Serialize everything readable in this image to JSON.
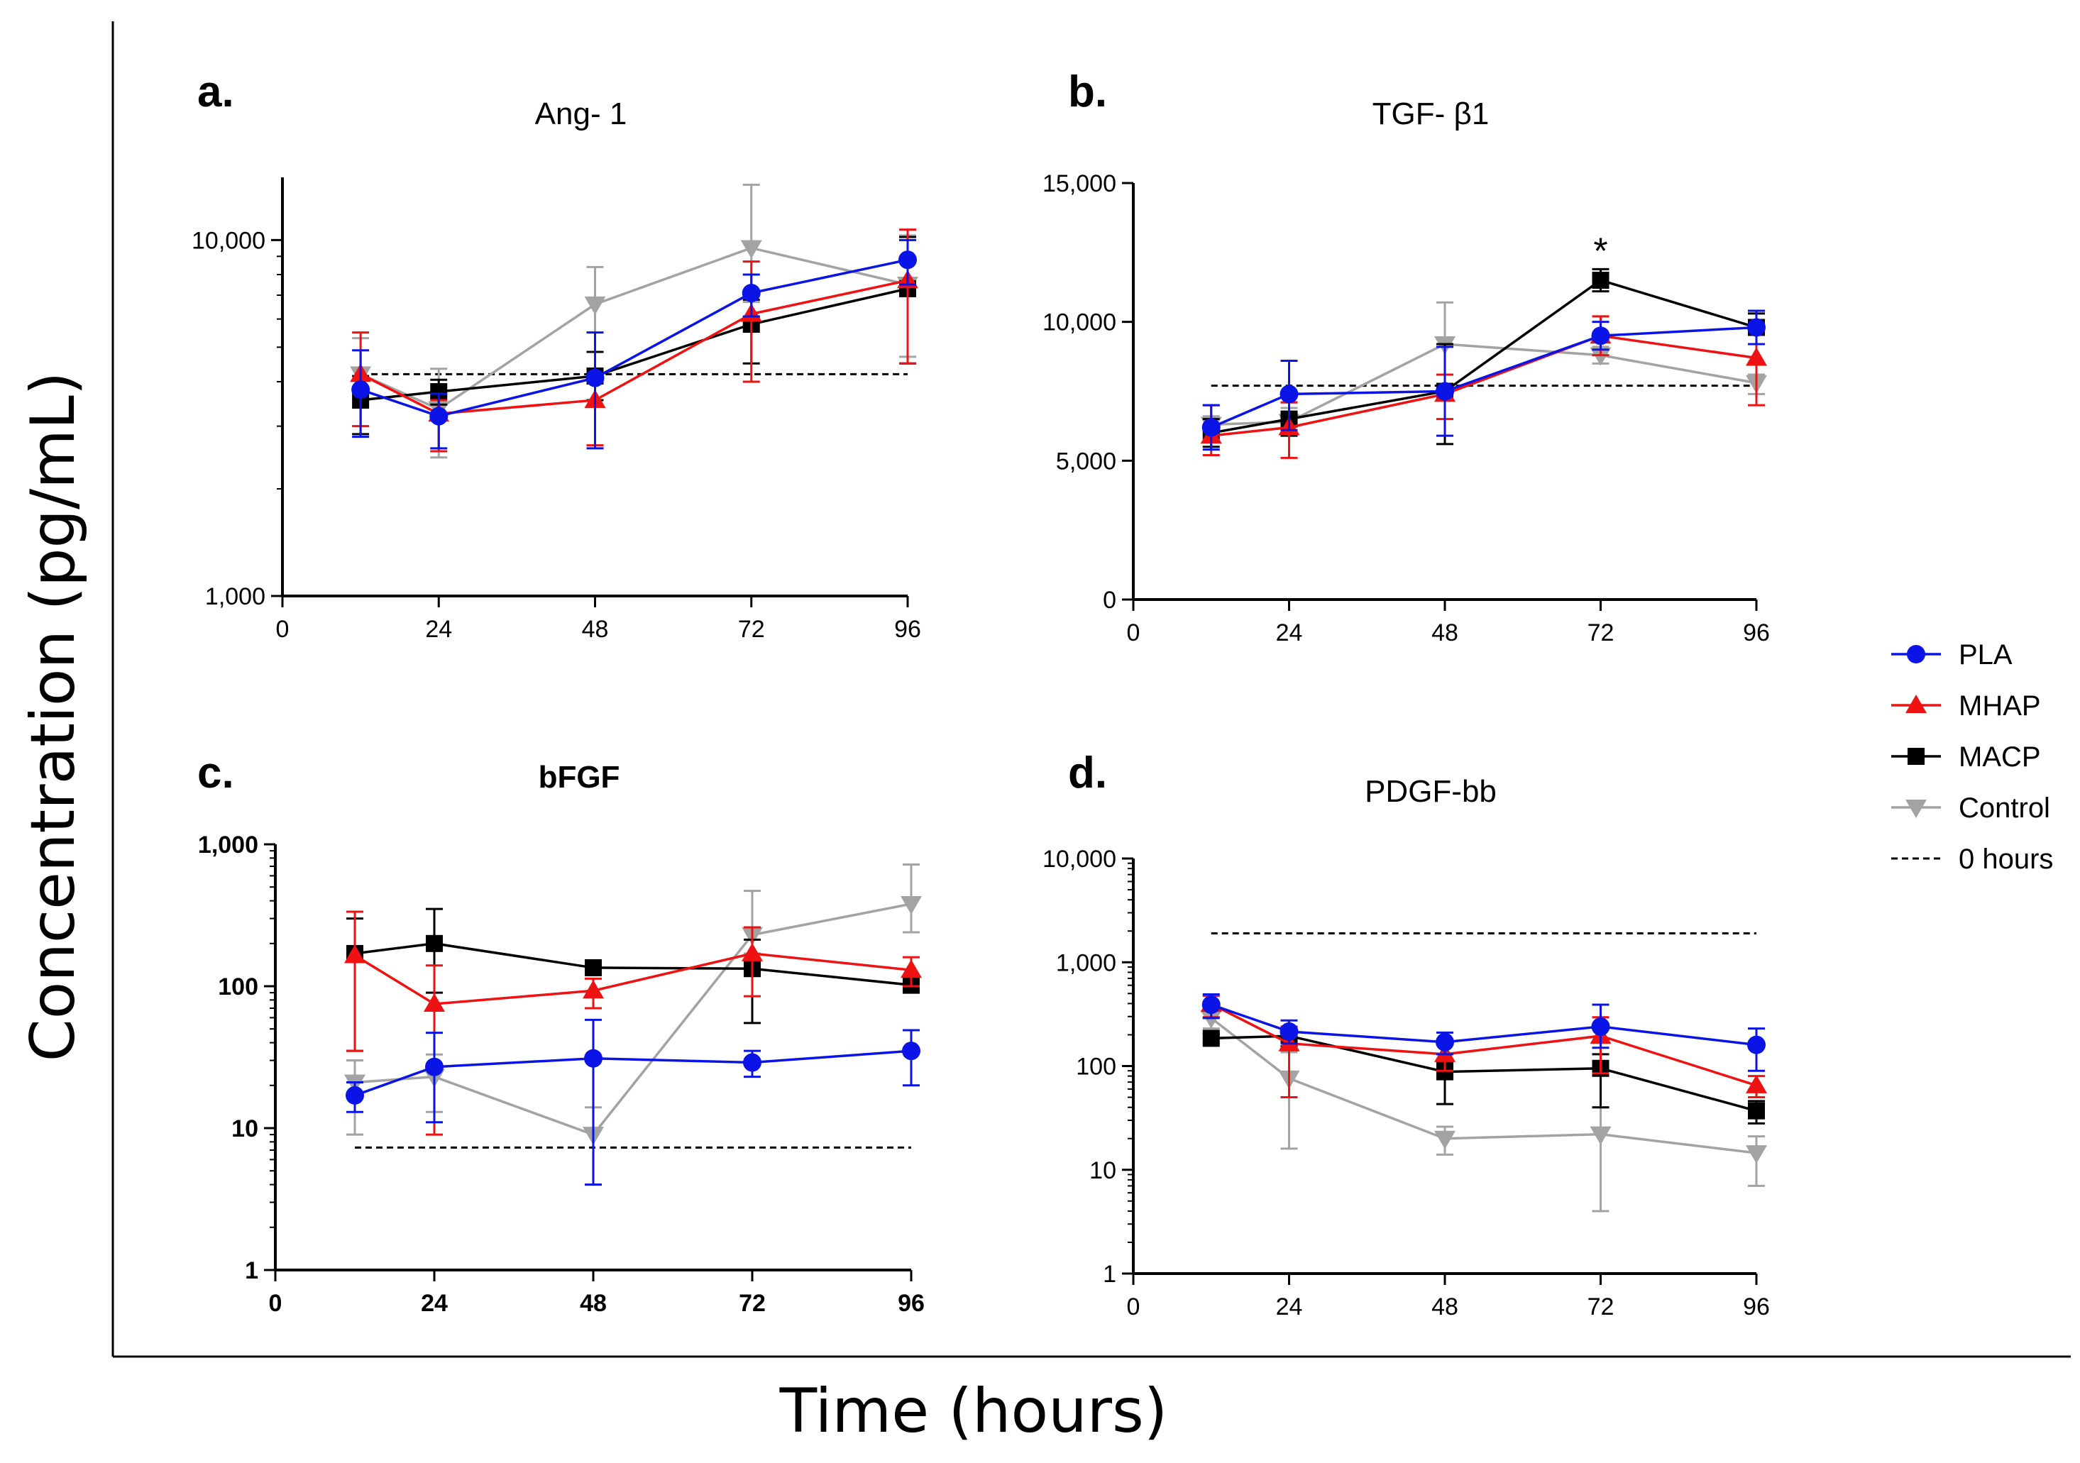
{
  "y_axis_label": "Concentration    (pg/mL)",
  "x_axis_label": "Time (hours)",
  "legend": [
    {
      "label": "PLA",
      "color": "#0a14e6",
      "marker": "circle"
    },
    {
      "label": "MHAP",
      "color": "#ee1212",
      "marker": "triangle-up"
    },
    {
      "label": "MACP",
      "color": "#000000",
      "marker": "square"
    },
    {
      "label": "Control",
      "color": "#a3a3a3",
      "marker": "triangle-down"
    },
    {
      "label": "0 hours",
      "color": "#000000",
      "marker": "dashed-line"
    }
  ],
  "significance_marker": "*",
  "chart_data": [
    {
      "id": "a",
      "letter": "a.",
      "title": "Ang- 1",
      "type": "line",
      "yscale": "log",
      "ylim": [
        1000,
        15000
      ],
      "xlim": [
        0,
        96
      ],
      "xticks": [
        0,
        24,
        48,
        72,
        96
      ],
      "xtick_labels": [
        "0",
        "24",
        "48",
        "72",
        "96"
      ],
      "yticks": [
        1000,
        10000
      ],
      "ytick_labels": [
        "1,000",
        "10,000"
      ],
      "tick_bold": false,
      "baseline_0h": 4200,
      "x": [
        12,
        24,
        48,
        72,
        96
      ],
      "series": [
        {
          "name": "PLA",
          "values": [
            3800,
            3200,
            4100,
            7100,
            8800
          ],
          "err_low": [
            1000,
            600,
            1500,
            1000,
            1300
          ],
          "err_high": [
            1100,
            500,
            1400,
            900,
            1200
          ]
        },
        {
          "name": "MHAP",
          "values": [
            4200,
            3250,
            3550,
            6200,
            7700
          ],
          "err_low": [
            1200,
            700,
            900,
            2200,
            3200
          ],
          "err_high": [
            1300,
            300,
            600,
            2500,
            3000
          ]
        },
        {
          "name": "MACP",
          "values": [
            3550,
            3750,
            4150,
            5800,
            7300
          ],
          "err_low": [
            700,
            300,
            600,
            1300,
            2800
          ],
          "err_high": [
            600,
            300,
            700,
            1000,
            2900
          ]
        },
        {
          "name": "Control",
          "values": [
            4200,
            3350,
            6600,
            9500,
            7500
          ],
          "err_low": [
            1200,
            900,
            2500,
            2800,
            2800
          ],
          "err_high": [
            1100,
            1000,
            1800,
            4800,
            2800
          ]
        }
      ]
    },
    {
      "id": "b",
      "letter": "b.",
      "title": "TGF- β1",
      "type": "line",
      "yscale": "linear",
      "ylim": [
        0,
        15000
      ],
      "xlim": [
        0,
        96
      ],
      "xticks": [
        0,
        24,
        48,
        72,
        96
      ],
      "xtick_labels": [
        "0",
        "24",
        "48",
        "72",
        "96"
      ],
      "yticks": [
        0,
        5000,
        10000,
        15000
      ],
      "ytick_labels": [
        "0",
        "5,000",
        "10,000",
        "15,000"
      ],
      "tick_bold": false,
      "baseline_0h": 7700,
      "x": [
        12,
        24,
        48,
        72,
        96
      ],
      "series": [
        {
          "name": "PLA",
          "values": [
            6200,
            7400,
            7500,
            9500,
            9800
          ],
          "err_low": [
            800,
            1300,
            1600,
            500,
            600
          ],
          "err_high": [
            800,
            1200,
            1600,
            500,
            600
          ]
        },
        {
          "name": "MHAP",
          "values": [
            5900,
            6200,
            7400,
            9500,
            8700
          ],
          "err_low": [
            700,
            1100,
            900,
            700,
            1700
          ],
          "err_high": [
            1100,
            900,
            700,
            700,
            1700
          ]
        },
        {
          "name": "MACP",
          "values": [
            6000,
            6500,
            7500,
            11500,
            9800
          ],
          "err_low": [
            500,
            600,
            1900,
            400,
            600
          ],
          "err_high": [
            500,
            600,
            1700,
            400,
            500
          ]
        },
        {
          "name": "Control",
          "values": [
            6300,
            6400,
            9200,
            8800,
            7800
          ],
          "err_low": [
            300,
            500,
            1800,
            300,
            400
          ],
          "err_high": [
            300,
            500,
            1500,
            300,
            300
          ]
        }
      ],
      "annotation": {
        "x": 72,
        "series": "MACP"
      }
    },
    {
      "id": "c",
      "letter": "c.",
      "title": "bFGF",
      "type": "line",
      "yscale": "log",
      "ylim": [
        1,
        1000
      ],
      "xlim": [
        0,
        96
      ],
      "xticks": [
        0,
        24,
        48,
        72,
        96
      ],
      "xtick_labels": [
        "0",
        "24",
        "48",
        "72",
        "96"
      ],
      "yticks": [
        1,
        10,
        100,
        1000
      ],
      "ytick_labels": [
        "1",
        "10",
        "100",
        "1,000"
      ],
      "tick_bold": true,
      "baseline_0h": 7.3,
      "x": [
        12,
        24,
        48,
        72,
        96
      ],
      "series": [
        {
          "name": "PLA",
          "values": [
            17,
            27,
            31,
            29,
            35
          ],
          "err_low": [
            4,
            16,
            27,
            6,
            15
          ],
          "err_high": [
            4,
            20,
            27,
            6,
            14
          ]
        },
        {
          "name": "MHAP",
          "values": [
            165,
            75,
            93,
            170,
            130
          ],
          "err_low": [
            130,
            66,
            23,
            85,
            30
          ],
          "err_high": [
            170,
            65,
            20,
            90,
            30
          ]
        },
        {
          "name": "MACP",
          "values": [
            170,
            200,
            135,
            133,
            102
          ],
          "err_low": [
            135,
            110,
            10,
            78,
            12
          ],
          "err_high": [
            130,
            150,
            10,
            80,
            12
          ]
        },
        {
          "name": "Control",
          "values": [
            21,
            23,
            9,
            230,
            380
          ],
          "err_low": [
            12,
            10,
            5,
            60,
            140
          ],
          "err_high": [
            9,
            10,
            5,
            240,
            340
          ]
        }
      ]
    },
    {
      "id": "d",
      "letter": "d.",
      "title": "PDGF-bb",
      "type": "line",
      "yscale": "log",
      "ylim": [
        1,
        10000
      ],
      "xlim": [
        0,
        96
      ],
      "xticks": [
        0,
        24,
        48,
        72,
        96
      ],
      "xtick_labels": [
        "0",
        "24",
        "48",
        "72",
        "96"
      ],
      "yticks": [
        1,
        10,
        100,
        1000,
        10000
      ],
      "ytick_labels": [
        "1",
        "10",
        "100",
        "1,000",
        "10,000"
      ],
      "tick_bold": false,
      "baseline_0h": 1900,
      "x": [
        12,
        24,
        48,
        72,
        96
      ],
      "series": [
        {
          "name": "PLA",
          "values": [
            390,
            215,
            170,
            240,
            160
          ],
          "err_low": [
            100,
            50,
            40,
            90,
            70
          ],
          "err_high": [
            100,
            60,
            40,
            150,
            70
          ]
        },
        {
          "name": "MHAP",
          "values": [
            395,
            165,
            130,
            195,
            65
          ],
          "err_low": [
            100,
            115,
            40,
            110,
            15
          ],
          "err_high": [
            80,
            75,
            40,
            100,
            15
          ]
        },
        {
          "name": "MACP",
          "values": [
            185,
            195,
            88,
            95,
            37
          ],
          "err_low": [
            20,
            40,
            45,
            55,
            9
          ],
          "err_high": [
            20,
            40,
            20,
            35,
            9
          ]
        },
        {
          "name": "Control",
          "values": [
            290,
            76,
            20,
            22,
            14.5
          ],
          "err_low": [
            60,
            60,
            6,
            18,
            7.5
          ],
          "err_high": [
            60,
            60,
            6,
            18,
            6.5
          ]
        }
      ]
    }
  ]
}
